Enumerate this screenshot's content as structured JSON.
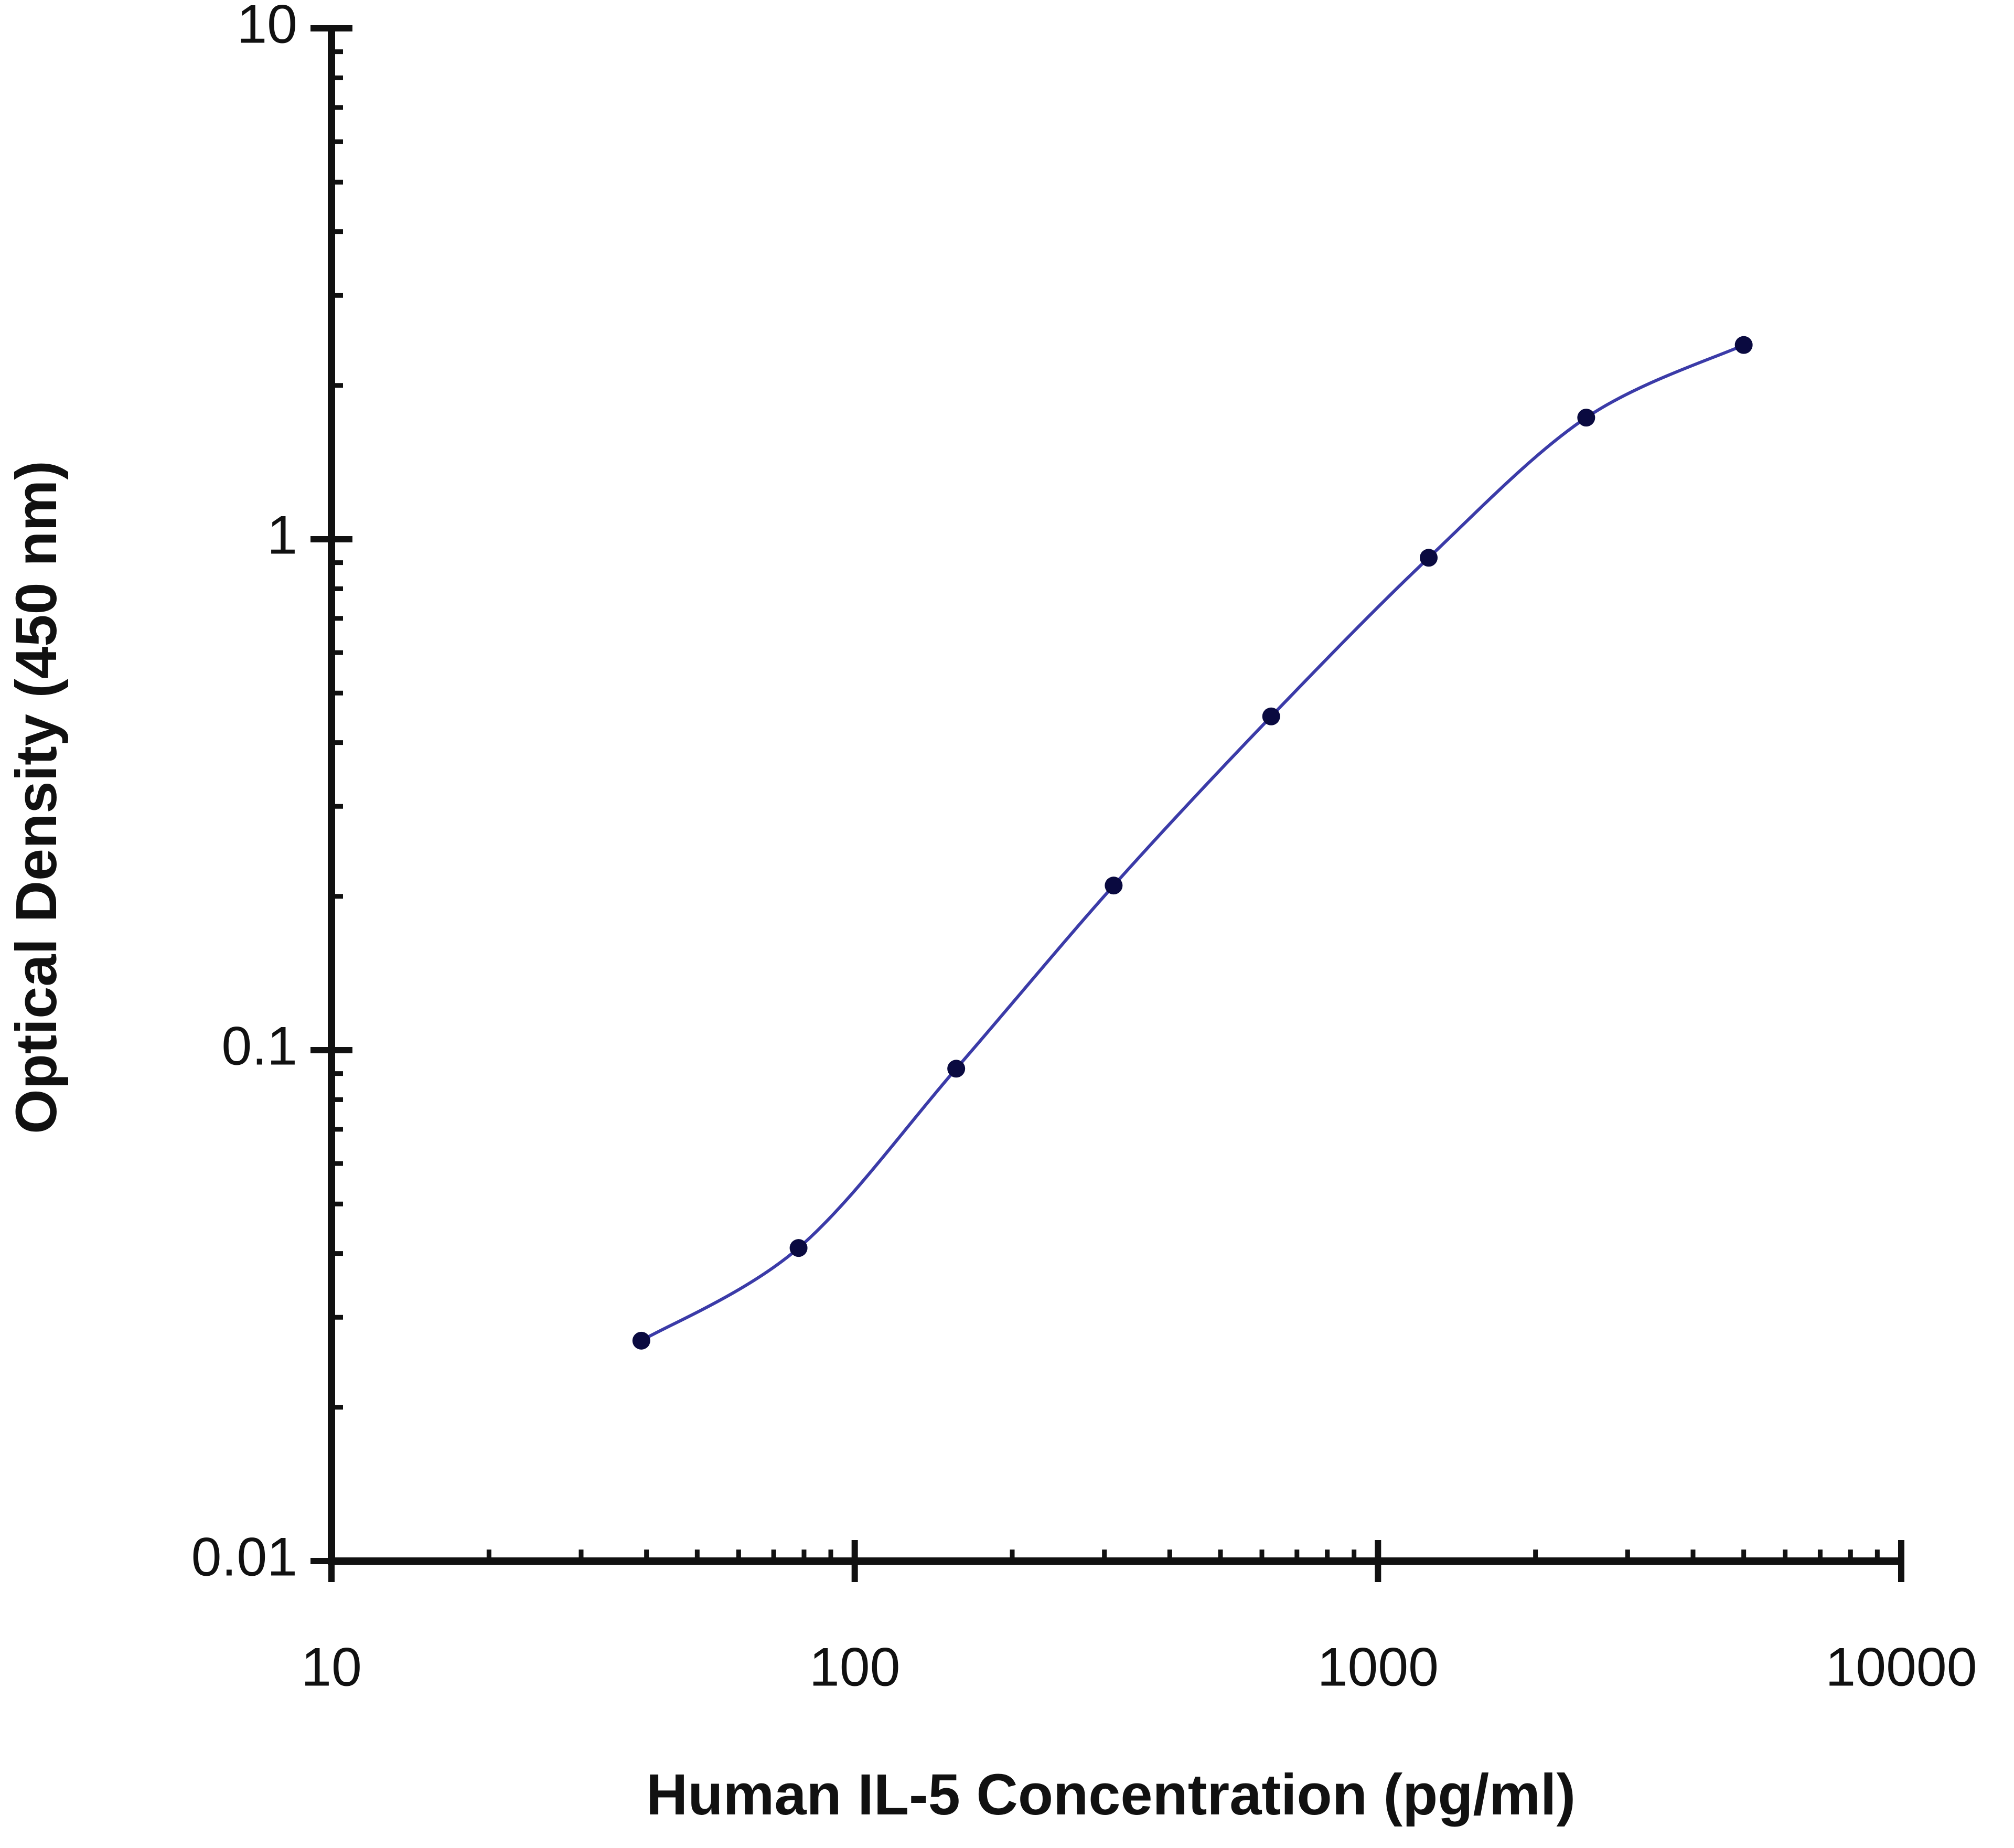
{
  "chart_data": {
    "type": "line",
    "x_label": "Human IL-5 Concentration (pg/ml)",
    "y_label": "Optical Density (450 nm)",
    "x_scale": "log",
    "y_scale": "log",
    "xlim": [
      10,
      10000
    ],
    "xticks": [
      10,
      100,
      1000,
      10000
    ],
    "ylim": [
      0.01,
      10
    ],
    "yticks": [
      0.01,
      0.1,
      1,
      10
    ],
    "grid": false,
    "series": [
      {
        "color": "#3b3ba8",
        "x": [
          39.1,
          78.1,
          156.3,
          312.5,
          625,
          1250,
          2500,
          5000
        ],
        "values": [
          0.027,
          0.041,
          0.092,
          0.21,
          0.45,
          0.92,
          1.73,
          2.4
        ]
      }
    ]
  }
}
